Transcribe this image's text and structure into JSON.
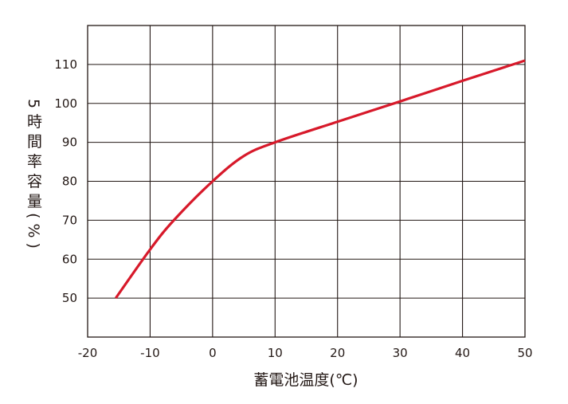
{
  "chart_data": {
    "type": "line",
    "title": "",
    "xlabel": "蓄電池温度(℃)",
    "ylabel": "5時間率容量(%)",
    "xlim": [
      -20,
      50
    ],
    "ylim": [
      40,
      120
    ],
    "xticks": [
      -20,
      -10,
      0,
      10,
      20,
      30,
      40,
      50
    ],
    "yticks": [
      50,
      60,
      70,
      80,
      90,
      100,
      110
    ],
    "grid": true,
    "series": [
      {
        "color": "#d7192a",
        "x": [
          -15.5,
          -10,
          -6.2,
          0,
          5,
          10,
          20,
          30,
          40,
          50
        ],
        "y": [
          50,
          62.5,
          70,
          80,
          86.5,
          90,
          95.3,
          100.5,
          105.8,
          111
        ]
      }
    ],
    "colors": {
      "grid": "#231815",
      "line": "#d7192a"
    }
  }
}
